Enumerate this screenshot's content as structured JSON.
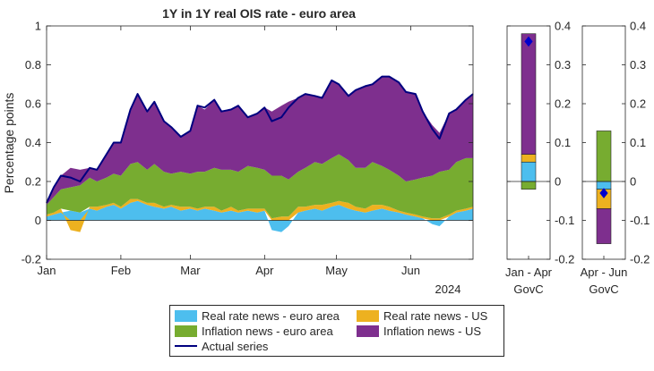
{
  "colors": {
    "real_rate_ea": "#4DBEEE",
    "real_rate_us": "#EDB120",
    "inflation_ea": "#77AC30",
    "inflation_us": "#7E2F8E",
    "actual": "#00007F",
    "diamond": "#0000CC"
  },
  "chart_data": [
    {
      "type": "area",
      "title": "1Y in 1Y real OIS rate - euro area",
      "ylabel": "Percentage points",
      "xlabel": "",
      "year_label": "2024",
      "ylim": [
        -0.2,
        1
      ],
      "yticks": [
        "-0.2",
        "0",
        "0.2",
        "0.4",
        "0.6",
        "0.8",
        "1"
      ],
      "xticks": [
        "Jan",
        "Feb",
        "Mar",
        "Apr",
        "May",
        "Jun"
      ],
      "x_range_days": [
        0,
        178
      ],
      "xtick_days": [
        0,
        31,
        60,
        91,
        121,
        152
      ],
      "grid": false,
      "series": [
        {
          "name": "Real rate news - euro area",
          "color_key": "real_rate_ea",
          "x": [
            0,
            3,
            6,
            10,
            14,
            18,
            21,
            25,
            28,
            31,
            35,
            38,
            42,
            45,
            49,
            52,
            56,
            60,
            63,
            66,
            70,
            73,
            77,
            80,
            84,
            88,
            91,
            94,
            98,
            101,
            105,
            108,
            112,
            115,
            119,
            122,
            126,
            129,
            133,
            136,
            140,
            143,
            147,
            150,
            154,
            157,
            161,
            164,
            168,
            171,
            175,
            178
          ],
          "values": [
            0.02,
            0.03,
            0.04,
            0.05,
            0.04,
            0.06,
            0.05,
            0.07,
            0.08,
            0.06,
            0.09,
            0.1,
            0.08,
            0.07,
            0.06,
            0.07,
            0.05,
            0.06,
            0.05,
            0.06,
            0.05,
            0.04,
            0.05,
            0.04,
            0.05,
            0.04,
            0.05,
            -0.05,
            -0.06,
            -0.03,
            0.04,
            0.05,
            0.06,
            0.05,
            0.07,
            0.08,
            0.06,
            0.05,
            0.04,
            0.05,
            0.06,
            0.05,
            0.04,
            0.03,
            0.02,
            0.01,
            -0.02,
            -0.03,
            0.02,
            0.04,
            0.05,
            0.06
          ]
        },
        {
          "name": "Real rate news - US",
          "color_key": "real_rate_us",
          "x": [
            0,
            3,
            6,
            10,
            14,
            18,
            21,
            25,
            28,
            31,
            35,
            38,
            42,
            45,
            49,
            52,
            56,
            60,
            63,
            66,
            70,
            73,
            77,
            80,
            84,
            88,
            91,
            94,
            98,
            101,
            105,
            108,
            112,
            115,
            119,
            122,
            126,
            129,
            133,
            136,
            140,
            143,
            147,
            150,
            154,
            157,
            161,
            164,
            168,
            171,
            175,
            178
          ],
          "values": [
            0.01,
            0.01,
            0.02,
            -0.05,
            -0.06,
            0.01,
            0.02,
            0.01,
            0.01,
            0.01,
            0.02,
            0.01,
            0.01,
            0.02,
            0.01,
            0.01,
            0.02,
            0.01,
            0.01,
            0.01,
            0.02,
            0.01,
            0.02,
            0.01,
            0.01,
            0.02,
            0.01,
            0.01,
            0.02,
            0.02,
            0.03,
            0.02,
            0.02,
            0.03,
            0.02,
            0.02,
            0.03,
            0.02,
            0.02,
            0.03,
            0.02,
            0.02,
            0.01,
            0.01,
            0.01,
            0.01,
            0.01,
            0.01,
            0.01,
            0.01,
            0.01,
            0.01
          ]
        },
        {
          "name": "Inflation news - euro area",
          "color_key": "inflation_ea",
          "x": [
            0,
            3,
            6,
            10,
            14,
            18,
            21,
            25,
            28,
            31,
            35,
            38,
            42,
            45,
            49,
            52,
            56,
            60,
            63,
            66,
            70,
            73,
            77,
            80,
            84,
            88,
            91,
            94,
            98,
            101,
            105,
            108,
            112,
            115,
            119,
            122,
            126,
            129,
            133,
            136,
            140,
            143,
            147,
            150,
            154,
            157,
            161,
            164,
            168,
            171,
            175,
            178
          ],
          "values": [
            0.05,
            0.08,
            0.1,
            0.12,
            0.14,
            0.15,
            0.13,
            0.14,
            0.15,
            0.16,
            0.18,
            0.19,
            0.17,
            0.2,
            0.18,
            0.16,
            0.18,
            0.17,
            0.19,
            0.18,
            0.2,
            0.21,
            0.19,
            0.2,
            0.22,
            0.21,
            0.2,
            0.22,
            0.21,
            0.19,
            0.18,
            0.2,
            0.22,
            0.21,
            0.23,
            0.24,
            0.22,
            0.2,
            0.21,
            0.22,
            0.2,
            0.19,
            0.18,
            0.16,
            0.18,
            0.2,
            0.22,
            0.24,
            0.23,
            0.25,
            0.26,
            0.25
          ]
        },
        {
          "name": "Inflation news - US",
          "color_key": "inflation_us",
          "x": [
            0,
            3,
            6,
            10,
            14,
            18,
            21,
            25,
            28,
            31,
            35,
            38,
            42,
            45,
            49,
            52,
            56,
            60,
            63,
            66,
            70,
            73,
            77,
            80,
            84,
            88,
            91,
            94,
            98,
            101,
            105,
            108,
            112,
            115,
            119,
            122,
            126,
            129,
            133,
            136,
            140,
            143,
            147,
            150,
            154,
            157,
            161,
            164,
            168,
            171,
            175,
            178
          ],
          "values": [
            0.01,
            0.05,
            0.07,
            0.1,
            0.08,
            0.05,
            0.06,
            0.12,
            0.16,
            0.17,
            0.28,
            0.35,
            0.3,
            0.32,
            0.26,
            0.24,
            0.18,
            0.22,
            0.34,
            0.32,
            0.35,
            0.3,
            0.31,
            0.34,
            0.25,
            0.28,
            0.32,
            0.33,
            0.36,
            0.4,
            0.38,
            0.38,
            0.34,
            0.34,
            0.4,
            0.36,
            0.33,
            0.4,
            0.42,
            0.4,
            0.46,
            0.48,
            0.48,
            0.46,
            0.44,
            0.34,
            0.26,
            0.2,
            0.29,
            0.27,
            0.3,
            0.33
          ]
        },
        {
          "name": "Actual series",
          "color_key": "actual",
          "x": [
            0,
            3,
            6,
            10,
            14,
            18,
            21,
            25,
            28,
            31,
            35,
            38,
            42,
            45,
            49,
            52,
            56,
            60,
            63,
            66,
            70,
            73,
            77,
            80,
            84,
            88,
            91,
            94,
            98,
            101,
            105,
            108,
            112,
            115,
            119,
            122,
            126,
            129,
            133,
            136,
            140,
            143,
            147,
            150,
            154,
            157,
            161,
            164,
            168,
            171,
            175,
            178
          ],
          "values": [
            0.09,
            0.17,
            0.23,
            0.22,
            0.2,
            0.27,
            0.26,
            0.34,
            0.4,
            0.4,
            0.57,
            0.65,
            0.56,
            0.61,
            0.51,
            0.48,
            0.43,
            0.46,
            0.59,
            0.58,
            0.62,
            0.56,
            0.57,
            0.59,
            0.53,
            0.55,
            0.58,
            0.51,
            0.53,
            0.58,
            0.63,
            0.65,
            0.64,
            0.63,
            0.72,
            0.7,
            0.64,
            0.67,
            0.69,
            0.7,
            0.74,
            0.74,
            0.71,
            0.66,
            0.65,
            0.56,
            0.47,
            0.42,
            0.55,
            0.57,
            0.62,
            0.65
          ]
        }
      ]
    },
    {
      "type": "bar",
      "stacked": true,
      "categories": [
        "Jan - Apr"
      ],
      "sublabel": "GovC",
      "ylim": [
        -0.2,
        0.4
      ],
      "yticks": [
        "-0.2",
        "-0.1",
        "0",
        "0.1",
        "0.2",
        "0.3",
        "0.4"
      ],
      "series": [
        {
          "name": "Real rate news - euro area",
          "color_key": "real_rate_ea",
          "values": [
            0.05
          ]
        },
        {
          "name": "Real rate news - US",
          "color_key": "real_rate_us",
          "values": [
            0.02
          ]
        },
        {
          "name": "Inflation news - euro area",
          "color_key": "inflation_ea",
          "values": [
            -0.02
          ]
        },
        {
          "name": "Inflation news - US",
          "color_key": "inflation_us",
          "values": [
            0.31
          ]
        }
      ],
      "actual": [
        0.36
      ]
    },
    {
      "type": "bar",
      "stacked": true,
      "categories": [
        "Apr - Jun"
      ],
      "sublabel": "GovC",
      "ylim": [
        -0.2,
        0.4
      ],
      "yticks": [
        "-0.2",
        "-0.1",
        "0",
        "0.1",
        "0.2",
        "0.3",
        "0.4"
      ],
      "series": [
        {
          "name": "Real rate news - euro area",
          "color_key": "real_rate_ea",
          "values": [
            -0.02
          ]
        },
        {
          "name": "Real rate news - US",
          "color_key": "real_rate_us",
          "values": [
            -0.05
          ]
        },
        {
          "name": "Inflation news - euro area",
          "color_key": "inflation_ea",
          "values": [
            0.13
          ]
        },
        {
          "name": "Inflation news - US",
          "color_key": "inflation_us",
          "values": [
            -0.09
          ]
        }
      ],
      "actual": [
        -0.03
      ]
    }
  ],
  "legend": [
    {
      "label": "Real rate news - euro area",
      "color_key": "real_rate_ea",
      "kind": "patch"
    },
    {
      "label": "Real rate news - US",
      "color_key": "real_rate_us",
      "kind": "patch"
    },
    {
      "label": "Inflation news - euro area",
      "color_key": "inflation_ea",
      "kind": "patch"
    },
    {
      "label": "Inflation news - US",
      "color_key": "inflation_us",
      "kind": "patch"
    },
    {
      "label": "Actual series",
      "color_key": "actual",
      "kind": "line"
    }
  ]
}
